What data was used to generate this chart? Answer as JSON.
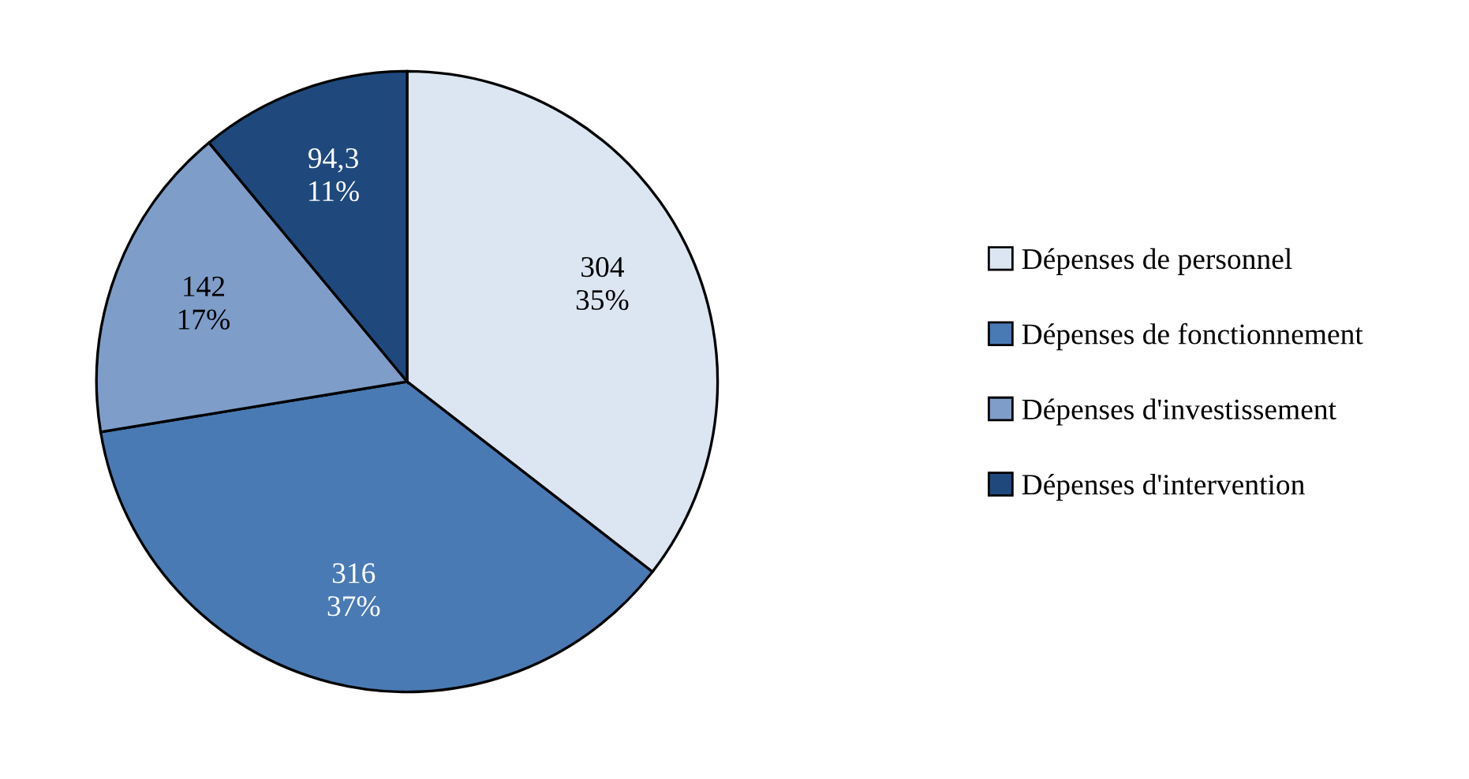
{
  "chart_data": {
    "type": "pie",
    "categories": [
      "Dépenses de personnel",
      "Dépenses de fonctionnement",
      "Dépenses d'investissement",
      "Dépenses d'intervention"
    ],
    "values": [
      304,
      316,
      142,
      94.3
    ],
    "colors": [
      "#dce6f2",
      "#4a7ab4",
      "#7f9dc9",
      "#1f497d"
    ],
    "value_labels": [
      "304\n35%",
      "316\n37%",
      "142\n17%",
      "94,3\n11%"
    ],
    "legend": "right"
  }
}
